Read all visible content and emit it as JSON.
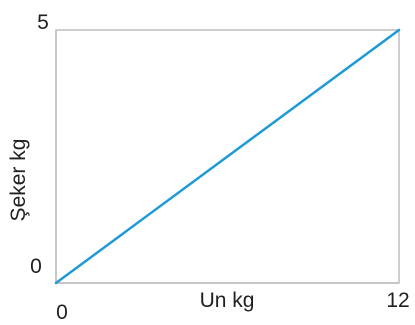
{
  "chart_data": {
    "type": "line",
    "title": "",
    "xlabel": "Un kg",
    "ylabel": "Şeker kg",
    "xlim": [
      0,
      12
    ],
    "ylim": [
      0,
      5
    ],
    "x_ticks": [
      "0",
      "12"
    ],
    "y_ticks": [
      "0",
      "5"
    ],
    "grid": false,
    "series": [
      {
        "x": [
          0,
          12
        ],
        "y": [
          0,
          5
        ],
        "color": "#1f9ad6"
      }
    ]
  }
}
